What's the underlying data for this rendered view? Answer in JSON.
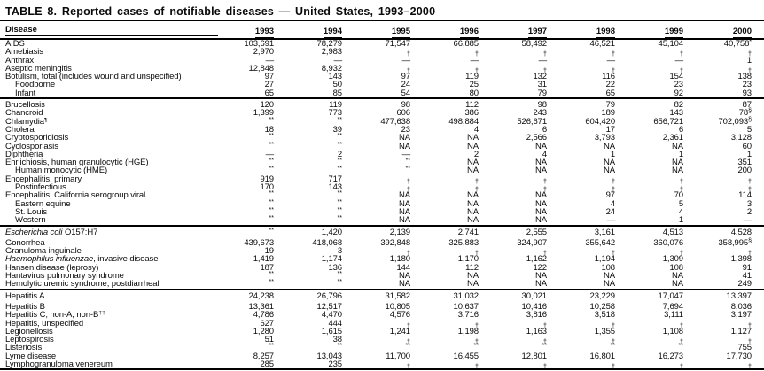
{
  "title": "TABLE 8. Reported cases of notifiable diseases — United States, 1993–2000",
  "columns": [
    "Disease",
    "1993",
    "1994",
    "1995",
    "1996",
    "1997",
    "1998",
    "1999",
    "2000"
  ],
  "legend_symbols": {
    "dash": "—",
    "not_notifiable": "†",
    "not_available": "NA",
    "not_in_table": "**"
  },
  "sections": [
    {
      "rows": [
        {
          "label": "AIDS",
          "indent": false,
          "values": [
            "103,691",
            "78,279",
            "71,547",
            "66,885",
            "58,492",
            "46,521",
            "45,104",
            "40,758*"
          ]
        },
        {
          "label": "Amebiasis",
          "indent": false,
          "values": [
            "2,970",
            "2,983",
            "†",
            "†",
            "†",
            "†",
            "†",
            "†"
          ]
        },
        {
          "label": "Anthrax",
          "indent": false,
          "values": [
            "—",
            "—",
            "—",
            "—",
            "—",
            "—",
            "—",
            "1"
          ]
        },
        {
          "label": "Aseptic meningitis",
          "indent": false,
          "values": [
            "12,848",
            "8,932",
            "†",
            "†",
            "†",
            "†",
            "†",
            "†"
          ]
        },
        {
          "label": "Botulism, total (includes wound and unspecified)",
          "indent": false,
          "values": [
            "97",
            "143",
            "97",
            "119",
            "132",
            "116",
            "154",
            "138"
          ]
        },
        {
          "label": "Foodborne",
          "indent": true,
          "values": [
            "27",
            "50",
            "24",
            "25",
            "31",
            "22",
            "23",
            "23"
          ]
        },
        {
          "label": "Infant",
          "indent": true,
          "values": [
            "65",
            "85",
            "54",
            "80",
            "79",
            "65",
            "92",
            "93"
          ]
        }
      ]
    },
    {
      "rows": [
        {
          "label": "Brucellosis",
          "indent": false,
          "values": [
            "120",
            "119",
            "98",
            "112",
            "98",
            "79",
            "82",
            "87"
          ]
        },
        {
          "label": "Chancroid",
          "indent": false,
          "values": [
            "1,399",
            "773",
            "606",
            "386",
            "243",
            "189",
            "143",
            "78§"
          ]
        },
        {
          "label": "Chlamydia",
          "label_sup": "¶",
          "indent": false,
          "values": [
            "**",
            "**",
            "477,638",
            "498,884",
            "526,671",
            "604,420",
            "656,721",
            "702,093§"
          ]
        },
        {
          "label": "Cholera",
          "indent": false,
          "values": [
            "18",
            "39",
            "23",
            "4",
            "6",
            "17",
            "6",
            "5"
          ]
        },
        {
          "label": "Cryptosporidiosis",
          "indent": false,
          "values": [
            "**",
            "**",
            "NA",
            "NA",
            "2,566",
            "3,793",
            "2,361",
            "3,128"
          ]
        },
        {
          "label": "Cyclosporiasis",
          "indent": false,
          "values": [
            "**",
            "**",
            "NA",
            "NA",
            "NA",
            "NA",
            "NA",
            "60"
          ]
        },
        {
          "label": "Diphtheria",
          "indent": false,
          "values": [
            "—",
            "2",
            "—",
            "2",
            "4",
            "1",
            "1",
            "1"
          ]
        },
        {
          "label": "Ehrlichiosis, human granulocytic (HGE)",
          "indent": false,
          "values": [
            "**",
            "**",
            "**",
            "NA",
            "NA",
            "NA",
            "NA",
            "351"
          ]
        },
        {
          "label": "Human monocytic (HME)",
          "indent": true,
          "values": [
            "**",
            "**",
            "**",
            "NA",
            "NA",
            "NA",
            "NA",
            "200"
          ]
        },
        {
          "label": "Encephalitis, primary",
          "indent": false,
          "values": [
            "919",
            "717",
            "†",
            "†",
            "†",
            "†",
            "†",
            "†"
          ]
        },
        {
          "label": "Postinfectious",
          "indent": true,
          "values": [
            "170",
            "143",
            "†",
            "†",
            "†",
            "†",
            "†",
            "†"
          ]
        },
        {
          "label": "Encephalitis, California serogroup viral",
          "indent": false,
          "values": [
            "**",
            "**",
            "NA",
            "NA",
            "NA",
            "97",
            "70",
            "114"
          ]
        },
        {
          "label": "Eastern equine",
          "indent": true,
          "values": [
            "**",
            "**",
            "NA",
            "NA",
            "NA",
            "4",
            "5",
            "3"
          ]
        },
        {
          "label": "St. Louis",
          "indent": true,
          "values": [
            "**",
            "**",
            "NA",
            "NA",
            "NA",
            "24",
            "4",
            "2"
          ]
        },
        {
          "label": "Western",
          "indent": true,
          "values": [
            "**",
            "**",
            "NA",
            "NA",
            "NA",
            "—",
            "1",
            "—"
          ]
        }
      ]
    },
    {
      "rows": [
        {
          "label_italic": "Escherichia coli",
          "label": " O157:H7",
          "indent": false,
          "gap_after": true,
          "values": [
            "**",
            "1,420",
            "2,139",
            "2,741",
            "2,555",
            "3,161",
            "4,513",
            "4,528"
          ]
        },
        {
          "label": "Gonorrhea",
          "indent": false,
          "values": [
            "439,673",
            "418,068",
            "392,848",
            "325,883",
            "324,907",
            "355,642",
            "360,076",
            "358,995§"
          ]
        },
        {
          "label": "Granuloma inguinale",
          "indent": false,
          "values": [
            "19",
            "3",
            "†",
            "†",
            "†",
            "†",
            "†",
            "†"
          ]
        },
        {
          "label_italic": "Haemophilus influenzae",
          "label": ", invasive disease",
          "indent": false,
          "values": [
            "1,419",
            "1,174",
            "1,180",
            "1,170",
            "1,162",
            "1,194",
            "1,309",
            "1,398"
          ]
        },
        {
          "label": "Hansen disease (leprosy)",
          "indent": false,
          "values": [
            "187",
            "136",
            "144",
            "112",
            "122",
            "108",
            "108",
            "91"
          ]
        },
        {
          "label": "Hantavirus pulmonary syndrome",
          "indent": false,
          "values": [
            "**",
            "**",
            "NA",
            "NA",
            "NA",
            "NA",
            "NA",
            "41"
          ]
        },
        {
          "label": "Hemolytic uremic syndrome, postdiarrheal",
          "indent": false,
          "values": [
            "**",
            "**",
            "NA",
            "NA",
            "NA",
            "NA",
            "NA",
            "249"
          ]
        }
      ]
    },
    {
      "rows": [
        {
          "label": "Hepatitis A",
          "indent": false,
          "gap_after": true,
          "values": [
            "24,238",
            "26,796",
            "31,582",
            "31,032",
            "30,021",
            "23,229",
            "17,047",
            "13,397"
          ]
        },
        {
          "label": "Hepatitis B",
          "indent": false,
          "values": [
            "13,361",
            "12,517",
            "10,805",
            "10,637",
            "10,416",
            "10,258",
            "7,694",
            "8,036"
          ]
        },
        {
          "label": "Hepatitis C; non-A, non-B",
          "label_sup": "††",
          "indent": false,
          "values": [
            "4,786",
            "4,470",
            "4,576",
            "3,716",
            "3,816",
            "3,518",
            "3,111",
            "3,197"
          ]
        },
        {
          "label": "Hepatitis, unspecified",
          "indent": false,
          "values": [
            "627",
            "444",
            "†",
            "†",
            "†",
            "†",
            "†",
            "†"
          ]
        },
        {
          "label": "Legionellosis",
          "indent": false,
          "values": [
            "1,280",
            "1,615",
            "1,241",
            "1,198",
            "1,163",
            "1,355",
            "1,108",
            "1,127"
          ]
        },
        {
          "label": "Leptospirosis",
          "indent": false,
          "values": [
            "51",
            "38",
            "†",
            "†",
            "†",
            "†",
            "†",
            "†"
          ]
        },
        {
          "label": "Listeriosis",
          "indent": false,
          "values": [
            "**",
            "**",
            "**",
            "**",
            "**",
            "**",
            "**",
            "755"
          ]
        },
        {
          "label": "Lyme disease",
          "indent": false,
          "values": [
            "8,257",
            "13,043",
            "11,700",
            "16,455",
            "12,801",
            "16,801",
            "16,273",
            "17,730"
          ]
        },
        {
          "label": "Lymphogranuloma venereum",
          "indent": false,
          "values": [
            "285",
            "235",
            "†",
            "†",
            "†",
            "†",
            "†",
            "†"
          ]
        }
      ]
    }
  ]
}
